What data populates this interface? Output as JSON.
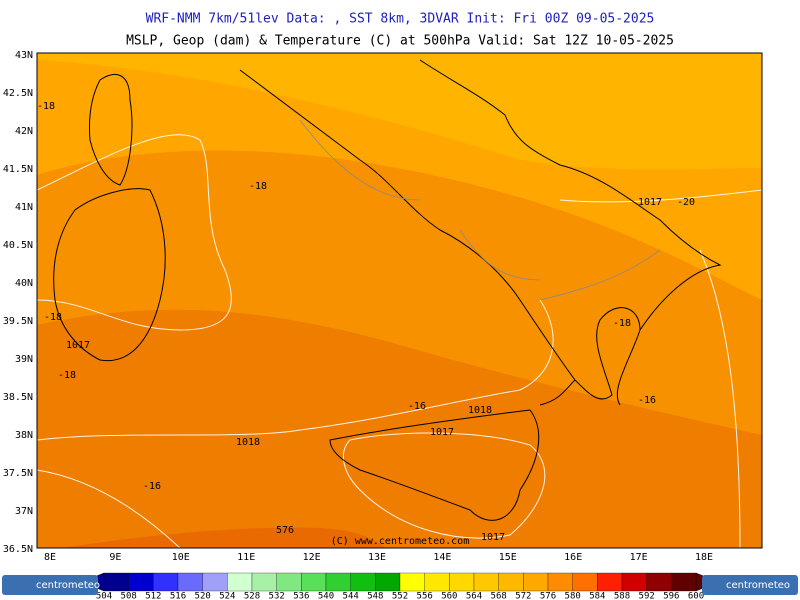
{
  "header": {
    "line1": "WRF-NMM 7km/51lev  Data: , SST 8km, 3DVAR  Init: Fri 00Z 09-05-2025",
    "line2": "MSLP, Geop (dam) & Temperature (C) at 500hPa  Valid: Sat 12Z 10-05-2025"
  },
  "axes": {
    "lat_labels": [
      "43N",
      "42.5N",
      "42N",
      "41.5N",
      "41N",
      "40.5N",
      "40N",
      "39.5N",
      "39N",
      "38.5N",
      "38N",
      "37.5N",
      "37N",
      "36.5N"
    ],
    "lon_labels": [
      "8E",
      "9E",
      "10E",
      "11E",
      "12E",
      "13E",
      "14E",
      "15E",
      "16E",
      "17E",
      "18E"
    ]
  },
  "contour_labels": [
    "-18",
    "-18",
    "1017",
    "-20",
    "-18",
    "-18",
    "1017",
    "-18",
    "-16",
    "1018",
    "-16",
    "1018",
    "1017",
    "-16",
    "576",
    "1017"
  ],
  "watermark": "(C) www.centrometeo.com",
  "logos": [
    "centrometeo",
    "centrometeo"
  ],
  "colorbar": {
    "values": [
      504,
      508,
      512,
      516,
      520,
      524,
      528,
      532,
      536,
      540,
      544,
      548,
      552,
      556,
      560,
      564,
      568,
      572,
      576,
      580,
      584,
      588,
      592,
      596,
      600
    ],
    "colors": [
      "#000090",
      "#0000d0",
      "#3030ff",
      "#6a6aff",
      "#a0a0f8",
      "#d0ffd0",
      "#a8f0a8",
      "#80e880",
      "#58e058",
      "#30d030",
      "#10c010",
      "#00a800",
      "#ffff00",
      "#ffe800",
      "#ffd800",
      "#ffc800",
      "#ffb800",
      "#ffa800",
      "#ff8c00",
      "#ff7000",
      "#ff2000",
      "#d00000",
      "#900000",
      "#600000"
    ]
  }
}
